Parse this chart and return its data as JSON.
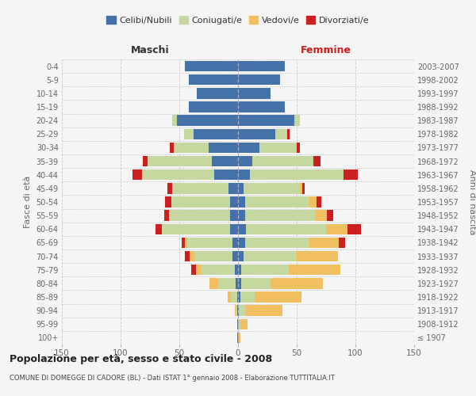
{
  "age_groups": [
    "100+",
    "95-99",
    "90-94",
    "85-89",
    "80-84",
    "75-79",
    "70-74",
    "65-69",
    "60-64",
    "55-59",
    "50-54",
    "45-49",
    "40-44",
    "35-39",
    "30-34",
    "25-29",
    "20-24",
    "15-19",
    "10-14",
    "5-9",
    "0-4"
  ],
  "birth_years": [
    "≤ 1907",
    "1908-1912",
    "1913-1917",
    "1918-1922",
    "1923-1927",
    "1928-1932",
    "1933-1937",
    "1938-1942",
    "1943-1947",
    "1948-1952",
    "1953-1957",
    "1958-1962",
    "1963-1967",
    "1968-1972",
    "1973-1977",
    "1978-1982",
    "1983-1987",
    "1988-1992",
    "1993-1997",
    "1998-2002",
    "2003-2007"
  ],
  "colors": {
    "celibi": "#4472a8",
    "coniugati": "#c5d8a0",
    "vedovi": "#f0c060",
    "divorziati": "#cc2020"
  },
  "maschi": {
    "celibi": [
      1,
      1,
      1,
      1,
      2,
      3,
      5,
      5,
      7,
      7,
      7,
      8,
      20,
      22,
      25,
      38,
      52,
      42,
      35,
      42,
      45
    ],
    "coniugati": [
      0,
      0,
      1,
      5,
      15,
      28,
      32,
      38,
      58,
      52,
      50,
      48,
      62,
      55,
      30,
      8,
      4,
      0,
      0,
      0,
      0
    ],
    "vedovi": [
      0,
      0,
      1,
      3,
      7,
      5,
      4,
      2,
      0,
      0,
      0,
      0,
      0,
      0,
      0,
      0,
      0,
      0,
      0,
      0,
      0
    ],
    "divorziati": [
      0,
      0,
      0,
      0,
      0,
      4,
      4,
      3,
      5,
      4,
      5,
      4,
      8,
      4,
      3,
      0,
      0,
      0,
      0,
      0,
      0
    ]
  },
  "femmine": {
    "celibi": [
      0,
      0,
      1,
      2,
      3,
      3,
      5,
      6,
      7,
      6,
      6,
      5,
      10,
      12,
      18,
      32,
      48,
      40,
      28,
      36,
      40
    ],
    "coniugati": [
      0,
      2,
      5,
      12,
      25,
      40,
      45,
      55,
      68,
      60,
      55,
      48,
      80,
      52,
      32,
      10,
      5,
      0,
      0,
      0,
      0
    ],
    "vedovi": [
      2,
      6,
      32,
      40,
      44,
      44,
      35,
      25,
      18,
      10,
      6,
      2,
      0,
      0,
      0,
      0,
      0,
      0,
      0,
      0,
      0
    ],
    "divorziati": [
      0,
      0,
      0,
      0,
      0,
      0,
      0,
      5,
      12,
      5,
      4,
      2,
      12,
      6,
      3,
      2,
      0,
      0,
      0,
      0,
      0
    ]
  },
  "title": "Popolazione per età, sesso e stato civile - 2008",
  "subtitle": "COMUNE DI DOMEGGE DI CADORE (BL) - Dati ISTAT 1° gennaio 2008 - Elaborazione TUTTITALIA.IT",
  "xlabel_left": "Maschi",
  "xlabel_right": "Femmine",
  "ylabel_left": "Fasce di età",
  "ylabel_right": "Anni di nascita",
  "xlim": 150,
  "background": "#f5f5f5",
  "legend_labels": [
    "Celibi/Nubili",
    "Coniugati/e",
    "Vedovi/e",
    "Divorziati/e"
  ]
}
